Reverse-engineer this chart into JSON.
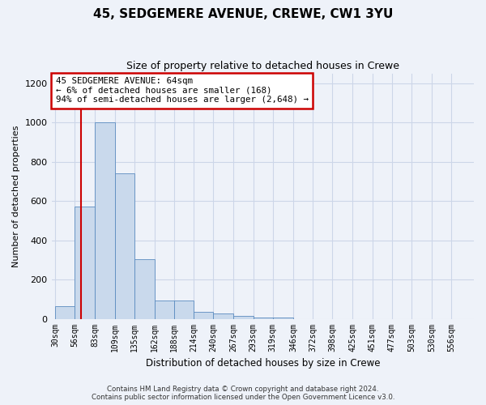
{
  "title": "45, SEDGEMERE AVENUE, CREWE, CW1 3YU",
  "subtitle": "Size of property relative to detached houses in Crewe",
  "xlabel": "Distribution of detached houses by size in Crewe",
  "ylabel": "Number of detached properties",
  "footer_line1": "Contains HM Land Registry data © Crown copyright and database right 2024.",
  "footer_line2": "Contains public sector information licensed under the Open Government Licence v3.0.",
  "annotation_line1": "45 SEDGEMERE AVENUE: 64sqm",
  "annotation_line2": "← 6% of detached houses are smaller (168)",
  "annotation_line3": "94% of semi-detached houses are larger (2,648) →",
  "property_size": 64,
  "bin_edges": [
    30,
    56,
    83,
    109,
    135,
    162,
    188,
    214,
    240,
    267,
    293,
    319,
    346,
    372,
    398,
    425,
    451,
    477,
    503,
    530,
    556
  ],
  "bar_heights": [
    65,
    570,
    1000,
    740,
    305,
    95,
    95,
    35,
    25,
    15,
    5,
    5,
    0,
    0,
    0,
    0,
    0,
    0,
    0,
    0
  ],
  "bar_color": "#c9d9ec",
  "bar_edge_color": "#5a8bbf",
  "redline_color": "#cc0000",
  "annotation_box_color": "#cc0000",
  "grid_color": "#ccd6e8",
  "background_color": "#eef2f9",
  "ylim": [
    0,
    1250
  ],
  "yticks": [
    0,
    200,
    400,
    600,
    800,
    1000,
    1200
  ]
}
